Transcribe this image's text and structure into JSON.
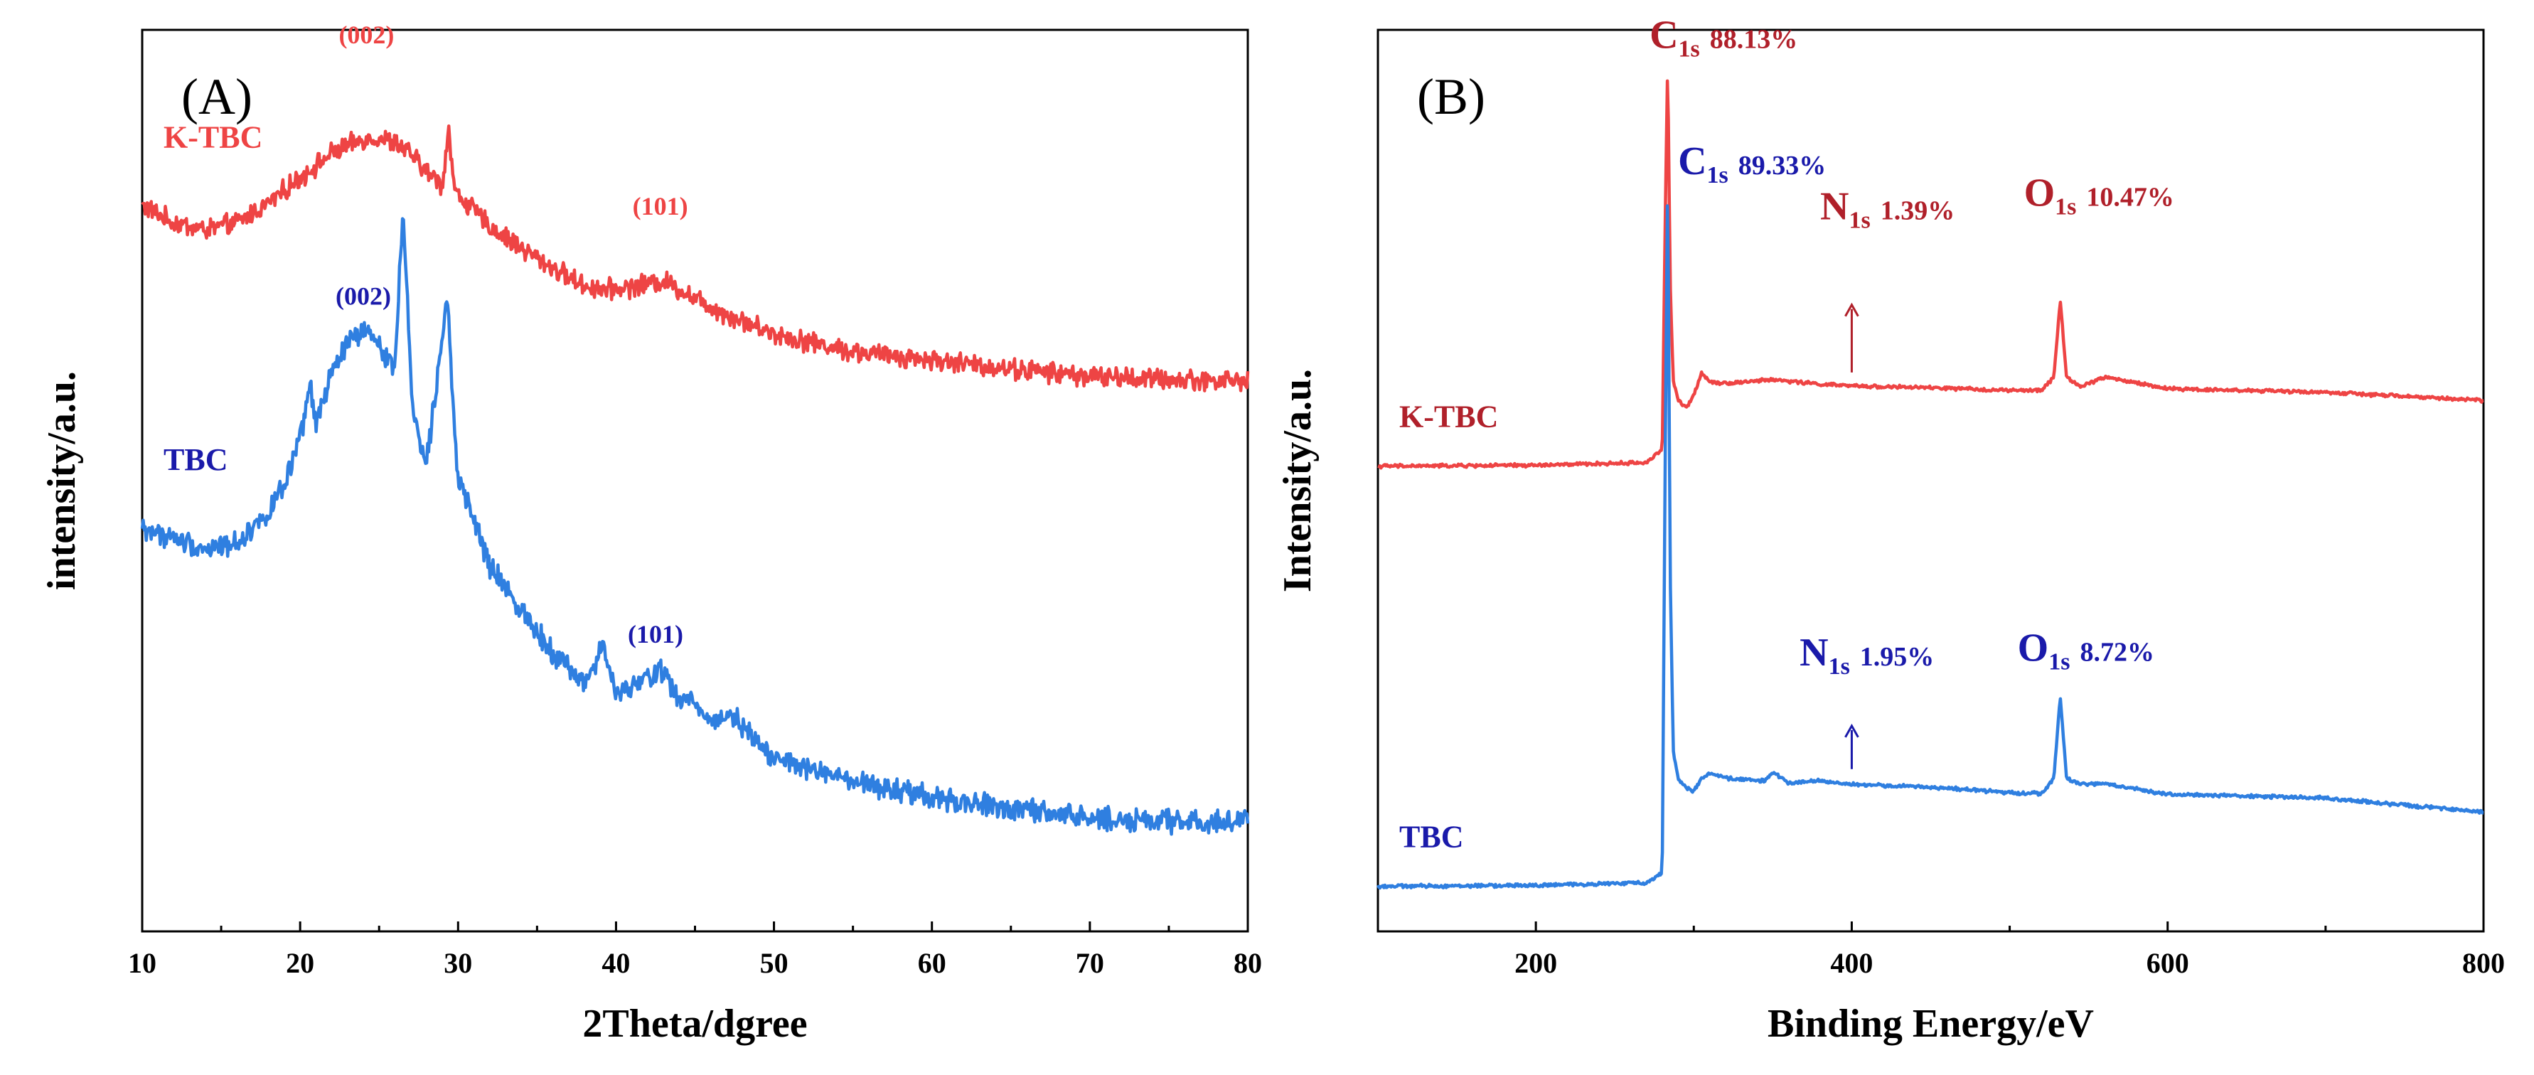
{
  "chart_data": [
    {
      "type": "line",
      "panel_label": "(A)",
      "xlabel": "2Theta/dgree",
      "ylabel": "intensity/a.u.",
      "xlim": [
        10,
        80
      ],
      "ylim": [
        0,
        100
      ],
      "x_ticks": [
        10,
        20,
        30,
        40,
        50,
        60,
        70,
        80
      ],
      "x_tick_labels": [
        "10",
        "20",
        "30",
        "40",
        "50",
        "60",
        "70",
        "80"
      ],
      "y_ticks_shown": false,
      "grid": false,
      "colors": {
        "K-TBC": "#ee4444",
        "TBC": "#2f7fe0"
      },
      "series": [
        {
          "name": "K-TBC",
          "label": "K-TBC",
          "label_color": "#ee4444",
          "noise": 0.9,
          "x": [
            10,
            12,
            14,
            16,
            18,
            20,
            22,
            24,
            25,
            26,
            27,
            28,
            29,
            29.4,
            29.8,
            31,
            32,
            34,
            36,
            38,
            39.5,
            41,
            43,
            45,
            47,
            50,
            55,
            60,
            65,
            70,
            75,
            80
          ],
          "values": [
            80.5,
            78.6,
            77.8,
            78.6,
            80.8,
            83.6,
            86.3,
            87.9,
            88.0,
            87.5,
            86.2,
            84.3,
            82.8,
            89.0,
            82.0,
            80.0,
            78.2,
            75.8,
            73.6,
            71.6,
            71.2,
            71.5,
            72.2,
            70.3,
            68.4,
            66.3,
            64.3,
            63.4,
            62.4,
            61.6,
            61.2,
            61.1
          ]
        },
        {
          "name": "TBC",
          "label": "TBC",
          "label_color": "#1a1aaa",
          "noise": 1.0,
          "x": [
            10,
            12,
            14,
            16,
            18,
            19,
            20,
            20.6,
            21,
            22,
            23,
            24,
            25,
            26,
            26.5,
            27.1,
            28,
            29.3,
            30,
            31,
            32,
            34,
            36,
            38,
            39.2,
            40,
            41.5,
            42.8,
            44,
            45,
            46,
            47.2,
            48.2,
            50,
            55,
            60,
            65,
            70,
            75,
            80
          ],
          "values": [
            44.7,
            43.6,
            42.4,
            43.1,
            46.5,
            49.4,
            54.4,
            60.6,
            56.4,
            61.8,
            65.4,
            66.5,
            65.2,
            62.3,
            80.5,
            58.1,
            51.9,
            70.6,
            49.6,
            45.8,
            40.4,
            35.7,
            31.0,
            27.5,
            31.6,
            26.2,
            27.5,
            29.2,
            25.6,
            25.6,
            23.1,
            24.3,
            22.5,
            19.2,
            16.5,
            14.8,
            13.6,
            12.6,
            12.2,
            12.2
          ]
        }
      ],
      "annotations": [
        {
          "text": "(002)",
          "x": 24.2,
          "y": 98.5,
          "color": "#ee4444"
        },
        {
          "text": "(101)",
          "x": 42.8,
          "y": 79.5,
          "color": "#ee4444"
        },
        {
          "text": "(002)",
          "x": 24.0,
          "y": 69.5,
          "color": "#1a1aaa"
        },
        {
          "text": "(101)",
          "x": 42.5,
          "y": 32.0,
          "color": "#1a1aaa"
        }
      ]
    },
    {
      "type": "line",
      "panel_label": "(B)",
      "xlabel": "Binding Energy/eV",
      "ylabel": "Intensity/a.u.",
      "xlim": [
        100,
        800
      ],
      "ylim": [
        0,
        100
      ],
      "x_ticks": [
        200,
        400,
        600,
        800
      ],
      "x_tick_labels": [
        "200",
        "400",
        "600",
        "800"
      ],
      "y_ticks_shown": false,
      "grid": false,
      "colors": {
        "K-TBC": "#ee4444",
        "TBC": "#2f7fe0"
      },
      "series": [
        {
          "name": "K-TBC",
          "label": "K-TBC",
          "label_color": "#b0202a",
          "noise": 0.15,
          "x": [
            100,
            200,
            270,
            280,
            282,
            283.5,
            285,
            287,
            290,
            295,
            300,
            305,
            310,
            320,
            350,
            380,
            400,
            450,
            500,
            520,
            528,
            532,
            536,
            545,
            560,
            600,
            700,
            800
          ],
          "values": [
            51.6,
            51.7,
            52.0,
            53.5,
            80.0,
            97.0,
            72.0,
            61.0,
            59.0,
            58.0,
            59.5,
            62.0,
            61.0,
            60.8,
            61.2,
            60.7,
            60.5,
            60.3,
            60.0,
            60.0,
            61.5,
            70.0,
            61.5,
            60.4,
            61.5,
            60.2,
            59.8,
            58.9
          ]
        },
        {
          "name": "TBC",
          "label": "TBC",
          "label_color": "#1a1aaa",
          "noise": 0.15,
          "x": [
            100,
            200,
            270,
            280,
            282,
            283.5,
            285,
            287,
            290,
            295,
            300,
            305,
            310,
            320,
            345,
            350,
            360,
            380,
            400,
            450,
            500,
            520,
            528,
            532,
            536,
            545,
            560,
            600,
            700,
            800
          ],
          "values": [
            5.0,
            5.1,
            5.4,
            6.5,
            55.0,
            85.0,
            40.0,
            20.0,
            17.0,
            16.0,
            15.5,
            17.0,
            17.5,
            17.0,
            16.7,
            17.6,
            16.5,
            16.7,
            16.3,
            16.0,
            15.4,
            15.3,
            17.0,
            26.0,
            17.0,
            16.3,
            16.4,
            15.2,
            14.8,
            13.2
          ]
        }
      ],
      "annotations": [
        {
          "main": "C",
          "sub": "1s",
          "value": "88.13%",
          "x": 272,
          "y": 98.0,
          "color": "#b0202a"
        },
        {
          "main": "N",
          "sub": "1s",
          "value": "1.39%",
          "x": 380,
          "y": 79.0,
          "color": "#b0202a"
        },
        {
          "main": "O",
          "sub": "1s",
          "value": "10.47%",
          "x": 509,
          "y": 80.5,
          "color": "#b0202a"
        },
        {
          "main": "C",
          "sub": "1s",
          "value": "89.33%",
          "x": 290,
          "y": 84.0,
          "color": "#1a1aaa"
        },
        {
          "main": "N",
          "sub": "1s",
          "value": "1.95%",
          "x": 367,
          "y": 29.5,
          "color": "#1a1aaa"
        },
        {
          "main": "O",
          "sub": "1s",
          "value": "8.72%",
          "x": 505,
          "y": 30.0,
          "color": "#1a1aaa"
        }
      ],
      "arrows": [
        {
          "x": 400,
          "from": 62.0,
          "to": 69.5,
          "color": "#b0202a"
        },
        {
          "x": 400,
          "from": 18.0,
          "to": 22.8,
          "color": "#1a1aaa"
        }
      ]
    }
  ]
}
